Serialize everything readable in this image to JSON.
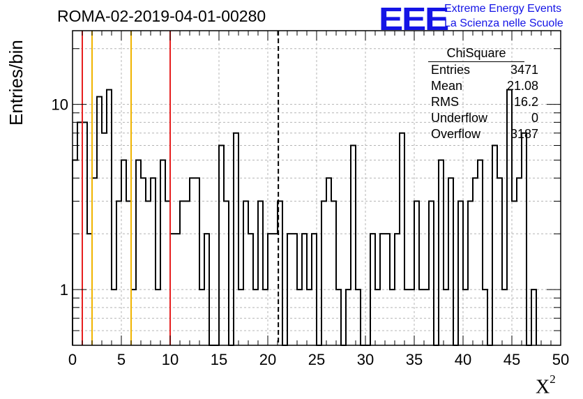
{
  "header": {
    "run_title": "ROMA-02-2019-04-01-00280",
    "brand_logo": "EEE",
    "brand_line1": "Extreme Energy Events",
    "brand_line2": "La Scienza nelle Scuole"
  },
  "stats_box": {
    "title": "ChiSquare",
    "rows": [
      {
        "key": "Entries",
        "value": "3471"
      },
      {
        "key": "Mean",
        "value": "21.08"
      },
      {
        "key": "RMS",
        "value": "16.2"
      },
      {
        "key": "Underflow",
        "value": "0"
      },
      {
        "key": "Overflow",
        "value": "3187"
      }
    ]
  },
  "chart_data": {
    "type": "histogram",
    "title": "ROMA-02-2019-04-01-00280",
    "xlabel": "X",
    "xlabel_superscript": "2",
    "ylabel": "Entries/bin",
    "xlim": [
      0,
      50
    ],
    "ylim": [
      0.5,
      25
    ],
    "yscale": "log",
    "grid": true,
    "bin_width": 0.5,
    "x_ticks": [
      "0",
      "5",
      "10",
      "15",
      "20",
      "25",
      "30",
      "35",
      "40",
      "45",
      "50"
    ],
    "y_ticks": [
      "1",
      "10"
    ],
    "counts": [
      5,
      8,
      8,
      2,
      4,
      11,
      7,
      12,
      1,
      3,
      5,
      3,
      1,
      5,
      4,
      3,
      4,
      1,
      5,
      3,
      2,
      2,
      3,
      3,
      4,
      4,
      1,
      2,
      0,
      0,
      6,
      3,
      0,
      7,
      1,
      3,
      2,
      1,
      3,
      1,
      2,
      2,
      3,
      0,
      2,
      2,
      1,
      2,
      1,
      2,
      0,
      3,
      4,
      3,
      1,
      0,
      1,
      6,
      1,
      0,
      0,
      2,
      1,
      2,
      2,
      1,
      2,
      7,
      1,
      1,
      3,
      1,
      1,
      3,
      0,
      5,
      1,
      4,
      0,
      3,
      1,
      3,
      4,
      5,
      1,
      0,
      6,
      4,
      1,
      12,
      3,
      4,
      7,
      0,
      1
    ],
    "reference_lines": [
      {
        "x": 1,
        "color": "#e61e1e",
        "style": "solid"
      },
      {
        "x": 2,
        "color": "#f0b400",
        "style": "solid"
      },
      {
        "x": 6,
        "color": "#f0b400",
        "style": "solid"
      },
      {
        "x": 10,
        "color": "#e61e1e",
        "style": "solid"
      },
      {
        "x": 21.08,
        "color": "#000000",
        "style": "dashed"
      }
    ]
  }
}
